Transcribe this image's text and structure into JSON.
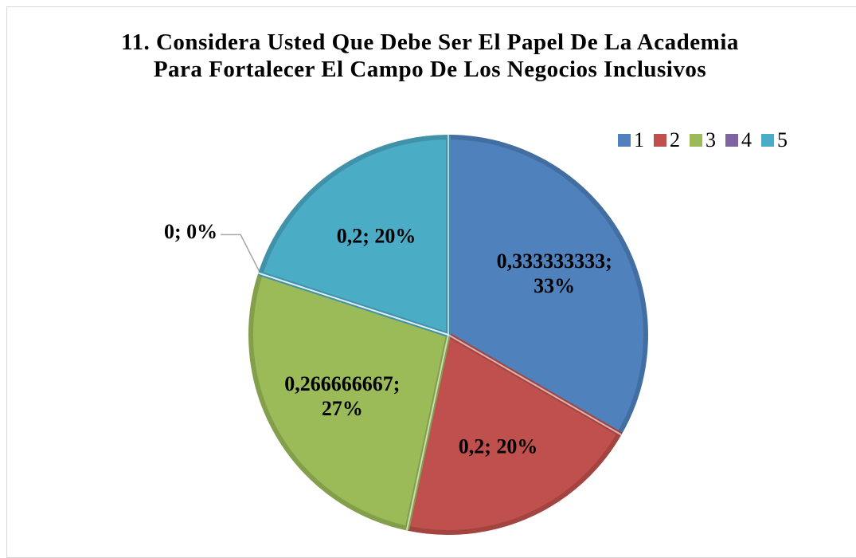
{
  "chart_data": {
    "type": "pie",
    "title": "11. Considera Usted Que Debe Ser El Papel De La Academia  Para Fortalecer El Campo De Los Negocios Inclusivos",
    "categories": [
      "1",
      "2",
      "3",
      "4",
      "5"
    ],
    "values": [
      0.333333333,
      0.2,
      0.266666667,
      0,
      0.2
    ],
    "value_labels": [
      "0,333333333; 33%",
      "0,2; 20%",
      "0,266666667; 27%",
      "0; 0%",
      "0,2; 20%"
    ],
    "colors": [
      "#4f81bd",
      "#c0504d",
      "#9bbb59",
      "#8064a2",
      "#4bacc6"
    ],
    "legend": "top-right"
  }
}
